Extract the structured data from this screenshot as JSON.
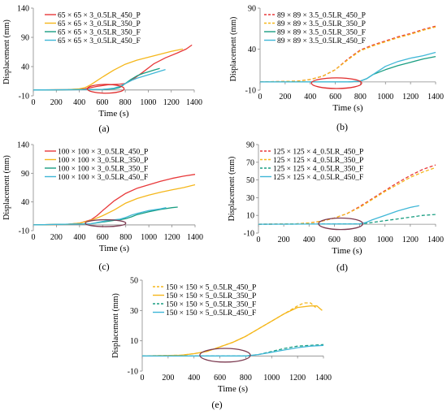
{
  "chart_data": [
    {
      "type": "line",
      "panel_label": "(a)",
      "xlabel": "Time (s)",
      "ylabel": "Displacement (mm)",
      "xlim": [
        0,
        1400
      ],
      "ylim": [
        -10,
        140
      ],
      "yticks": [
        -10,
        40,
        90,
        140
      ],
      "xticks": [
        0,
        200,
        400,
        600,
        800,
        1000,
        1200,
        1400
      ],
      "legend": "top-left",
      "series": [
        {
          "name": "65 × 65 × 3_0.5LR_450_P",
          "color": "#e8393a",
          "dash": false,
          "x": [
            0,
            300,
            450,
            550,
            650,
            750,
            800,
            850,
            950,
            1050,
            1150,
            1250,
            1330,
            1380
          ],
          "y": [
            0,
            0.5,
            2,
            6,
            9,
            10,
            11,
            16,
            30,
            45,
            55,
            63,
            70,
            77
          ]
        },
        {
          "name": "65 × 65 × 3_0.5LR_350_P",
          "color": "#f5b71b",
          "dash": false,
          "x": [
            0,
            300,
            400,
            450,
            500,
            600,
            700,
            800,
            900,
            1000,
            1100,
            1200,
            1300
          ],
          "y": [
            0,
            0.5,
            2,
            4,
            9,
            22,
            34,
            44,
            51,
            56,
            61,
            66,
            70
          ]
        },
        {
          "name": "65 × 65 × 3_0.5LR_350_F",
          "color": "#1a9e82",
          "dash": false,
          "x": [
            0,
            400,
            600,
            700,
            750,
            780,
            800,
            850,
            900,
            950,
            1000,
            1050,
            1100
          ],
          "y": [
            0,
            0.5,
            1,
            2,
            4,
            8,
            11,
            18,
            24,
            28,
            31,
            34,
            37
          ]
        },
        {
          "name": "65 × 65 × 3_0.5LR_450_F",
          "color": "#3fb7d7",
          "dash": false,
          "x": [
            0,
            400,
            600,
            700,
            750,
            800,
            850,
            900,
            1000,
            1100,
            1150
          ],
          "y": [
            0,
            0.5,
            1,
            3,
            6,
            11,
            16,
            20,
            26,
            32,
            35
          ]
        }
      ],
      "ellipse": {
        "cx": 630,
        "cy": 2,
        "rx": 160,
        "ry": 7.5
      }
    },
    {
      "type": "line",
      "panel_label": "(b)",
      "xlabel": "Time (s)",
      "ylabel": "Displacement (mm)",
      "xlim": [
        0,
        1400
      ],
      "ylim": [
        -10,
        90
      ],
      "yticks": [
        -10,
        40,
        90
      ],
      "xticks": [
        0,
        200,
        400,
        600,
        800,
        1000,
        1200,
        1400
      ],
      "legend": "top-left",
      "series": [
        {
          "name": "89 × 89 × 3.5_0.5LR_450_P",
          "color": "#e8393a",
          "dash": true,
          "x": [
            0,
            300,
            400,
            500,
            600,
            700,
            800,
            900,
            1000,
            1100,
            1200,
            1300,
            1400
          ],
          "y": [
            0,
            1,
            3,
            7,
            15,
            28,
            39,
            45,
            50,
            55,
            59,
            64,
            68
          ]
        },
        {
          "name": "89 × 89 × 3.5_0.5LR_350_P",
          "color": "#f5b71b",
          "dash": true,
          "x": [
            0,
            300,
            400,
            500,
            600,
            700,
            800,
            900,
            1000,
            1100,
            1200,
            1300,
            1400
          ],
          "y": [
            0,
            1,
            3,
            7,
            15,
            27,
            38,
            44,
            49,
            54,
            58,
            63,
            67
          ]
        },
        {
          "name": "89 × 89 × 3.5_0.5LR_350_F",
          "color": "#1a9e82",
          "dash": false,
          "x": [
            0,
            700,
            800,
            850,
            900,
            1000,
            1100,
            1200,
            1300,
            1400
          ],
          "y": [
            0,
            0,
            1,
            4,
            9,
            15,
            20,
            24,
            28,
            31
          ]
        },
        {
          "name": "89 × 89 × 3.5_0.5LR_450_F",
          "color": "#3fb7d7",
          "dash": false,
          "x": [
            0,
            700,
            800,
            850,
            900,
            1000,
            1100,
            1200,
            1300,
            1400
          ],
          "y": [
            0,
            0,
            1,
            4,
            9,
            19,
            25,
            29,
            32,
            36
          ]
        }
      ],
      "ellipse": {
        "cx": 610,
        "cy": -1.5,
        "rx": 200,
        "ry": 6.5
      }
    },
    {
      "type": "line",
      "panel_label": "(c)",
      "xlabel": "Time (s)",
      "ylabel": "Displacement (mm)",
      "xlim": [
        0,
        1400
      ],
      "ylim": [
        -10,
        140
      ],
      "yticks": [
        -10,
        40,
        90,
        140
      ],
      "xticks": [
        0,
        200,
        400,
        600,
        800,
        1000,
        1200,
        1400
      ],
      "legend": "top-left",
      "series": [
        {
          "name": "100 × 100 × 3_0.5LR_450_P",
          "color": "#e8393a",
          "dash": false,
          "x": [
            0,
            300,
            400,
            500,
            550,
            600,
            700,
            800,
            900,
            1000,
            1100,
            1200,
            1300,
            1400
          ],
          "y": [
            0,
            1,
            3,
            9,
            16,
            25,
            42,
            55,
            64,
            70,
            76,
            81,
            85,
            88
          ]
        },
        {
          "name": "100 × 100 × 3_0.5LR_350_P",
          "color": "#f5b71b",
          "dash": false,
          "x": [
            0,
            300,
            400,
            500,
            600,
            700,
            800,
            900,
            1000,
            1100,
            1200,
            1300,
            1400
          ],
          "y": [
            0,
            1,
            3,
            8,
            16,
            26,
            38,
            46,
            52,
            57,
            61,
            65,
            70
          ]
        },
        {
          "name": "100 × 100 × 3_0.5LR_350_F",
          "color": "#1a9e82",
          "dash": false,
          "x": [
            0,
            500,
            600,
            700,
            750,
            800,
            850,
            900,
            1000,
            1100,
            1200,
            1250
          ],
          "y": [
            0,
            2,
            5,
            8,
            9,
            11,
            14,
            18,
            23,
            27,
            30,
            31
          ]
        },
        {
          "name": "100 × 100 × 3_0.5LR_450_F",
          "color": "#3fb7d7",
          "dash": false,
          "x": [
            0,
            500,
            600,
            650,
            700,
            750,
            800,
            850,
            900,
            1000,
            1100,
            1150
          ],
          "y": [
            0,
            2,
            6,
            8,
            9,
            10,
            13,
            17,
            20,
            25,
            28,
            30
          ]
        }
      ],
      "ellipse": {
        "cx": 625,
        "cy": 3,
        "rx": 175,
        "ry": 6
      }
    },
    {
      "type": "line",
      "panel_label": "(d)",
      "xlabel": "Time (s)",
      "ylabel": "Displacement (mm)",
      "xlim": [
        0,
        1400
      ],
      "ylim": [
        -10,
        90
      ],
      "yticks": [
        -10,
        10,
        30,
        50,
        70,
        90
      ],
      "xticks": [
        0,
        200,
        400,
        600,
        800,
        1000,
        1200,
        1400
      ],
      "legend": "top-left",
      "series": [
        {
          "name": "125 × 125 × 4_0.5LR_450_P",
          "color": "#e8393a",
          "dash": true,
          "x": [
            0,
            300,
            400,
            500,
            600,
            700,
            800,
            900,
            1000,
            1100,
            1200,
            1300,
            1400
          ],
          "y": [
            0,
            0.5,
            1.5,
            3.5,
            7,
            12,
            20,
            29,
            38,
            47,
            55,
            62,
            67
          ]
        },
        {
          "name": "125 × 125 × 4_0.5LR_350_P",
          "color": "#f5b71b",
          "dash": true,
          "x": [
            0,
            300,
            400,
            500,
            600,
            700,
            800,
            900,
            1000,
            1100,
            1200,
            1300,
            1400
          ],
          "y": [
            0,
            0.5,
            1.5,
            3.5,
            7,
            12,
            19,
            28,
            37,
            45,
            53,
            59,
            64
          ]
        },
        {
          "name": "125 × 125 × 4_0.5LR_350_F",
          "color": "#1a9e82",
          "dash": true,
          "x": [
            0,
            800,
            850,
            900,
            1000,
            1100,
            1200,
            1300,
            1400
          ],
          "y": [
            0,
            0.5,
            1,
            2,
            4,
            6,
            8,
            10,
            11
          ]
        },
        {
          "name": "125 × 125 × 4_0.5LR_450_F",
          "color": "#3fb7d7",
          "dash": false,
          "x": [
            0,
            800,
            850,
            900,
            1000,
            1100,
            1200,
            1270
          ],
          "y": [
            0,
            0.5,
            2,
            5,
            10,
            15,
            19,
            21
          ]
        }
      ],
      "ellipse": {
        "cx": 650,
        "cy": 0.5,
        "rx": 175,
        "ry": 6.5
      }
    },
    {
      "type": "line",
      "panel_label": "(e)",
      "xlabel": "Time (s)",
      "ylabel": "Displacement (mm)",
      "xlim": [
        0,
        1400
      ],
      "ylim": [
        -10,
        50
      ],
      "yticks": [
        -10,
        10,
        30,
        50
      ],
      "xticks": [
        0,
        200,
        400,
        600,
        800,
        1000,
        1200,
        1400
      ],
      "legend": "top-left",
      "series": [
        {
          "name": "150 × 150 × 5_0.5LR_450_P",
          "color": "#f5b71b",
          "dash": true,
          "x": [
            0,
            300,
            400,
            500,
            600,
            700,
            800,
            900,
            1000,
            1100,
            1200,
            1250,
            1300,
            1340
          ],
          "y": [
            0,
            0.5,
            1.5,
            3,
            6,
            9,
            13,
            18,
            23,
            28,
            33,
            35,
            35,
            32
          ]
        },
        {
          "name": "150 × 150 × 5_0.5LR_350_P",
          "color": "#f5b71b",
          "dash": false,
          "x": [
            0,
            300,
            400,
            500,
            600,
            700,
            800,
            900,
            1000,
            1100,
            1200,
            1300,
            1350,
            1390
          ],
          "y": [
            0,
            0.5,
            1.5,
            3,
            6,
            9,
            13,
            18,
            23,
            28,
            32,
            33,
            33,
            30
          ]
        },
        {
          "name": "150 × 150 × 5_0.5LR_350_F",
          "color": "#1a9e82",
          "dash": true,
          "x": [
            0,
            800,
            900,
            1000,
            1100,
            1200,
            1300,
            1400
          ],
          "y": [
            0,
            0,
            1,
            3,
            5,
            6.5,
            7,
            7.5
          ]
        },
        {
          "name": "150 × 150 × 5_0.5LR_450_F",
          "color": "#3fb7d7",
          "dash": false,
          "x": [
            0,
            800,
            900,
            1000,
            1100,
            1200,
            1300,
            1400
          ],
          "y": [
            0,
            0,
            1,
            2.5,
            4,
            5.5,
            6.5,
            7
          ]
        }
      ],
      "ellipse": {
        "cx": 640,
        "cy": 0.5,
        "rx": 195,
        "ry": 4.5
      }
    }
  ]
}
